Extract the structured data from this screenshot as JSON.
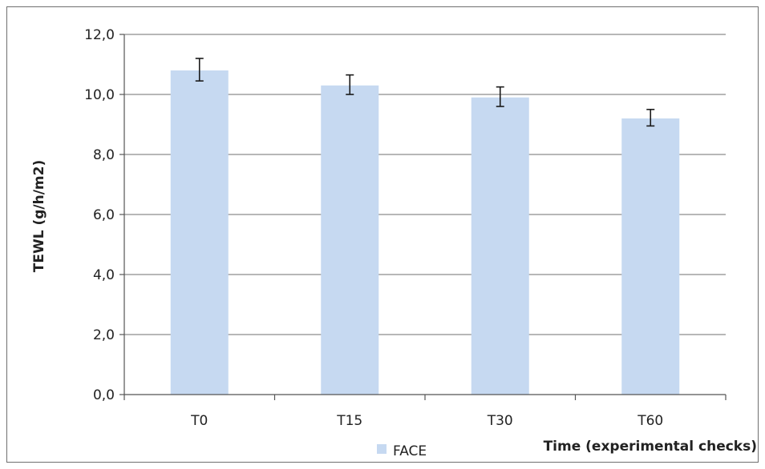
{
  "chart_data": {
    "type": "bar",
    "categories": [
      "T0",
      "T15",
      "T30",
      "T60"
    ],
    "series": [
      {
        "name": "FACE",
        "values": [
          10.8,
          10.3,
          9.9,
          9.2
        ],
        "error_low": [
          10.45,
          10.0,
          9.6,
          8.95
        ],
        "error_high": [
          11.2,
          10.65,
          10.25,
          9.5
        ]
      }
    ],
    "ylabel": "TEWL (g/h/m2)",
    "xlabel": "Time (experimental checks)",
    "ylim": [
      0,
      12
    ],
    "yticks": [
      "0,0",
      "2,0",
      "4,0",
      "6,0",
      "8,0",
      "10,0",
      "12,0"
    ],
    "grid": true,
    "legend": "bottom",
    "colors": {
      "bar": "#c6d9f1",
      "grid": "#8c8c8c",
      "axis": "#555555",
      "error": "#1a1a1a",
      "text": "#222222"
    }
  }
}
